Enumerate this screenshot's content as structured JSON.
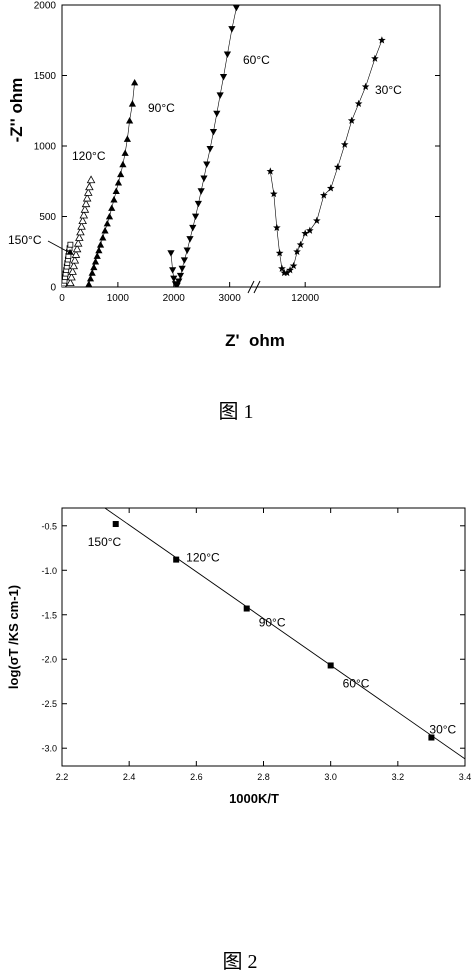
{
  "chart_data": [
    {
      "type": "scatter",
      "xlabel": "Z'  ohm",
      "ylabel": "-Z'' ohm",
      "x_segments": [
        {
          "range": [
            0,
            3400
          ],
          "ticks": [
            "0",
            "1000",
            "2000",
            "3000"
          ],
          "tick_values": [
            0,
            1000,
            2000,
            3000
          ]
        },
        {
          "range": [
            10400,
            17800
          ],
          "ticks": [
            "12000"
          ],
          "tick_values": [
            12000
          ]
        }
      ],
      "ylim": [
        0,
        2000
      ],
      "yticks": [
        "0",
        "500",
        "1000",
        "1500",
        "2000"
      ],
      "ytick_values": [
        0,
        500,
        1000,
        1500,
        2000
      ],
      "series": [
        {
          "name": "150°C",
          "marker": "open-square",
          "points": [
            [
              20,
              10
            ],
            [
              35,
              25
            ],
            [
              45,
              45
            ],
            [
              55,
              70
            ],
            [
              65,
              95
            ],
            [
              75,
              120
            ],
            [
              85,
              145
            ],
            [
              95,
              170
            ],
            [
              105,
              195
            ],
            [
              115,
              220
            ],
            [
              125,
              250
            ],
            [
              135,
              275
            ],
            [
              150,
              300
            ]
          ]
        },
        {
          "name": "120°C",
          "marker": "open-triangle-up",
          "points": [
            [
              150,
              30
            ],
            [
              170,
              70
            ],
            [
              190,
              110
            ],
            [
              210,
              150
            ],
            [
              230,
              190
            ],
            [
              250,
              230
            ],
            [
              270,
              270
            ],
            [
              290,
              310
            ],
            [
              310,
              350
            ],
            [
              330,
              390
            ],
            [
              350,
              430
            ],
            [
              370,
              470
            ],
            [
              390,
              510
            ],
            [
              410,
              550
            ],
            [
              430,
              590
            ],
            [
              450,
              630
            ],
            [
              470,
              670
            ],
            [
              490,
              710
            ],
            [
              520,
              760
            ]
          ]
        },
        {
          "name": "90°C",
          "marker": "filled-triangle-up",
          "points": [
            [
              480,
              20
            ],
            [
              510,
              60
            ],
            [
              540,
              100
            ],
            [
              570,
              140
            ],
            [
              600,
              180
            ],
            [
              630,
              220
            ],
            [
              660,
              260
            ],
            [
              690,
              300
            ],
            [
              730,
              350
            ],
            [
              770,
              400
            ],
            [
              810,
              450
            ],
            [
              850,
              500
            ],
            [
              890,
              560
            ],
            [
              930,
              620
            ],
            [
              970,
              680
            ],
            [
              1010,
              740
            ],
            [
              1050,
              800
            ],
            [
              1090,
              870
            ],
            [
              1130,
              950
            ],
            [
              1170,
              1050
            ],
            [
              1210,
              1180
            ],
            [
              1260,
              1300
            ],
            [
              1300,
              1450
            ]
          ]
        },
        {
          "name": "60°C",
          "marker": "filled-triangle-down",
          "points": [
            [
              1950,
              240
            ],
            [
              1980,
              120
            ],
            [
              2000,
              60
            ],
            [
              2030,
              20
            ],
            [
              2060,
              10
            ],
            [
              2090,
              40
            ],
            [
              2120,
              80
            ],
            [
              2150,
              130
            ],
            [
              2190,
              190
            ],
            [
              2240,
              260
            ],
            [
              2290,
              340
            ],
            [
              2340,
              420
            ],
            [
              2390,
              500
            ],
            [
              2440,
              590
            ],
            [
              2490,
              680
            ],
            [
              2540,
              770
            ],
            [
              2590,
              870
            ],
            [
              2650,
              980
            ],
            [
              2710,
              1100
            ],
            [
              2770,
              1230
            ],
            [
              2830,
              1360
            ],
            [
              2890,
              1490
            ],
            [
              2960,
              1650
            ],
            [
              3040,
              1830
            ],
            [
              3120,
              1980
            ]
          ]
        },
        {
          "name": "30°C",
          "marker": "filled-star",
          "points": [
            [
              10500,
              820
            ],
            [
              10650,
              660
            ],
            [
              10780,
              420
            ],
            [
              10900,
              240
            ],
            [
              11000,
              130
            ],
            [
              11100,
              100
            ],
            [
              11220,
              100
            ],
            [
              11350,
              120
            ],
            [
              11500,
              150
            ],
            [
              11650,
              250
            ],
            [
              11800,
              300
            ],
            [
              12000,
              380
            ],
            [
              12200,
              400
            ],
            [
              12500,
              470
            ],
            [
              12800,
              650
            ],
            [
              13100,
              700
            ],
            [
              13400,
              850
            ],
            [
              13700,
              1010
            ],
            [
              14000,
              1180
            ],
            [
              14300,
              1300
            ],
            [
              14600,
              1420
            ],
            [
              15000,
              1620
            ],
            [
              15300,
              1750
            ]
          ]
        }
      ],
      "annotations": [
        "150°C",
        "120°C",
        "90°C",
        "60°C",
        "30°C"
      ],
      "caption": "图 1"
    },
    {
      "type": "scatter",
      "xlabel": "1000K/T",
      "ylabel": "log(σT /KS cm-1)",
      "xlim": [
        2.2,
        3.4
      ],
      "ylim": [
        -3.2,
        -0.3
      ],
      "xticks": [
        "2.2",
        "2.4",
        "2.6",
        "2.8",
        "3.0",
        "3.2",
        "3.4"
      ],
      "xtick_values": [
        2.2,
        2.4,
        2.6,
        2.8,
        3.0,
        3.2,
        3.4
      ],
      "yticks": [
        "-0.5",
        "-1.0",
        "-1.5",
        "-2.0",
        "-2.5",
        "-3.0"
      ],
      "ytick_values": [
        -0.5,
        -1.0,
        -1.5,
        -2.0,
        -2.5,
        -3.0
      ],
      "points": [
        {
          "x": 2.36,
          "y": -0.48,
          "label": "150°C"
        },
        {
          "x": 2.54,
          "y": -0.88,
          "label": "120°C"
        },
        {
          "x": 2.75,
          "y": -1.43,
          "label": "90°C"
        },
        {
          "x": 3.0,
          "y": -2.07,
          "label": "60°C"
        },
        {
          "x": 3.3,
          "y": -2.88,
          "label": "30°C"
        }
      ],
      "fit_line": [
        [
          2.32,
          -0.28
        ],
        [
          3.4,
          -3.12
        ]
      ],
      "caption": "图 2"
    }
  ]
}
